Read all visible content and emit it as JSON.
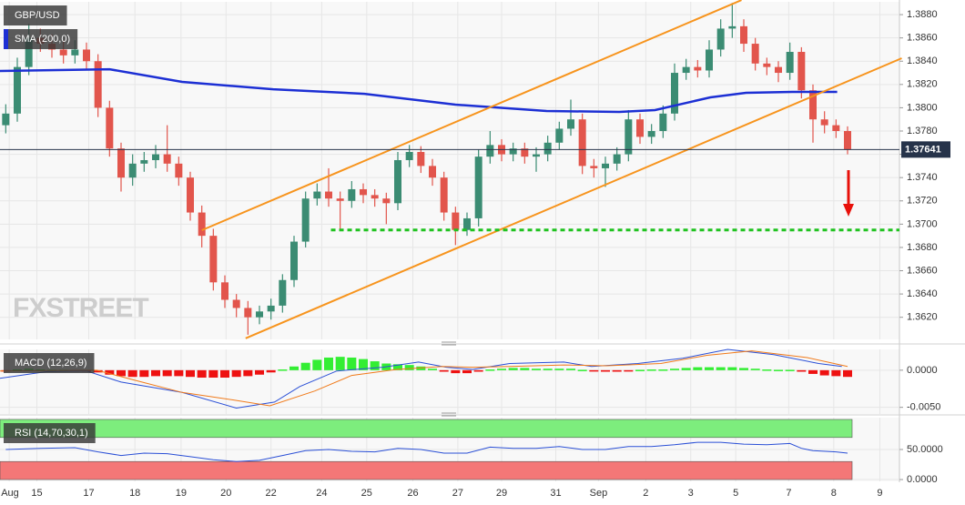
{
  "chart_data": [
    {
      "type": "candlestick",
      "title": "GBP/USD",
      "watermark": "FXSTREET",
      "up_color": "#3b8c73",
      "down_color": "#e2554c",
      "xlim": [
        -0.5,
        77.5
      ],
      "ylim": [
        1.3601,
        1.3891
      ],
      "xticks": [
        {
          "value": 0.3,
          "label": "Aug"
        },
        {
          "value": 2.7,
          "label": "15"
        },
        {
          "value": 7.2,
          "label": "17"
        },
        {
          "value": 11.2,
          "label": "18"
        },
        {
          "value": 15.2,
          "label": "19"
        },
        {
          "value": 19.1,
          "label": "20"
        },
        {
          "value": 23.0,
          "label": "22"
        },
        {
          "value": 27.4,
          "label": "24"
        },
        {
          "value": 31.3,
          "label": "25"
        },
        {
          "value": 35.3,
          "label": "26"
        },
        {
          "value": 39.2,
          "label": "27"
        },
        {
          "value": 43.0,
          "label": "29"
        },
        {
          "value": 47.7,
          "label": "31"
        },
        {
          "value": 51.4,
          "label": "Sep"
        },
        {
          "value": 55.5,
          "label": "2"
        },
        {
          "value": 59.4,
          "label": "3"
        },
        {
          "value": 63.3,
          "label": "5"
        },
        {
          "value": 67.9,
          "label": "7"
        },
        {
          "value": 71.8,
          "label": "8"
        },
        {
          "value": 75.8,
          "label": "9"
        }
      ],
      "yticks": [
        {
          "value": 1.362,
          "label": "1.3620"
        },
        {
          "value": 1.364,
          "label": "1.3640"
        },
        {
          "value": 1.366,
          "label": "1.3660"
        },
        {
          "value": 1.368,
          "label": "1.3680"
        },
        {
          "value": 1.37,
          "label": "1.3700"
        },
        {
          "value": 1.372,
          "label": "1.3720"
        },
        {
          "value": 1.374,
          "label": "1.3740"
        },
        {
          "value": 1.376,
          "label": "1.3760"
        },
        {
          "value": 1.378,
          "label": "1.3780"
        },
        {
          "value": 1.38,
          "label": "1.3800"
        },
        {
          "value": 1.382,
          "label": "1.3820"
        },
        {
          "value": 1.384,
          "label": "1.3840"
        },
        {
          "value": 1.386,
          "label": "1.3860"
        },
        {
          "value": 1.388,
          "label": "1.3880"
        }
      ],
      "grid": true,
      "x": [
        0,
        1,
        2,
        3,
        4,
        5,
        6,
        7,
        8,
        9,
        10,
        11,
        12,
        13,
        14,
        15,
        16,
        17,
        18,
        19,
        20,
        21,
        22,
        23,
        24,
        25,
        26,
        27,
        28,
        29,
        30,
        31,
        32,
        33,
        34,
        35,
        36,
        37,
        38,
        39,
        40,
        41,
        42,
        43,
        44,
        45,
        46,
        47,
        48,
        49,
        50,
        51,
        52,
        53,
        54,
        55,
        56,
        57,
        58,
        59,
        60,
        61,
        62,
        63,
        64,
        65,
        66,
        67,
        68,
        69,
        70,
        71,
        72,
        73
      ],
      "open": [
        1.3785,
        1.3795,
        1.3835,
        1.386,
        1.3855,
        1.385,
        1.3845,
        1.385,
        1.384,
        1.38,
        1.3765,
        1.374,
        1.3752,
        1.3755,
        1.376,
        1.3752,
        1.374,
        1.371,
        1.369,
        1.365,
        1.3635,
        1.3628,
        1.362,
        1.3625,
        1.363,
        1.3652,
        1.3685,
        1.3722,
        1.3728,
        1.3722,
        1.372,
        1.373,
        1.3725,
        1.3722,
        1.3718,
        1.3755,
        1.3762,
        1.375,
        1.374,
        1.371,
        1.3695,
        1.3705,
        1.3758,
        1.3768,
        1.376,
        1.3765,
        1.3758,
        1.376,
        1.377,
        1.3782,
        1.379,
        1.375,
        1.3748,
        1.3752,
        1.376,
        1.379,
        1.3775,
        1.378,
        1.3795,
        1.383,
        1.3835,
        1.3832,
        1.385,
        1.3868,
        1.387,
        1.3855,
        1.3838,
        1.3835,
        1.383,
        1.3848,
        1.3815,
        1.379,
        1.3785,
        1.378
      ],
      "high": [
        1.3803,
        1.3843,
        1.3872,
        1.3868,
        1.3863,
        1.3858,
        1.3858,
        1.3856,
        1.3846,
        1.3806,
        1.377,
        1.376,
        1.3762,
        1.3768,
        1.3785,
        1.3758,
        1.3745,
        1.3716,
        1.3696,
        1.3656,
        1.364,
        1.3634,
        1.363,
        1.3636,
        1.3657,
        1.369,
        1.3728,
        1.3735,
        1.3748,
        1.3728,
        1.3737,
        1.3735,
        1.373,
        1.3727,
        1.3762,
        1.3768,
        1.3767,
        1.3756,
        1.3745,
        1.3715,
        1.371,
        1.3764,
        1.378,
        1.3773,
        1.377,
        1.377,
        1.3766,
        1.3776,
        1.3788,
        1.3807,
        1.3795,
        1.3756,
        1.3758,
        1.3766,
        1.3798,
        1.3795,
        1.3786,
        1.3802,
        1.3838,
        1.3842,
        1.3841,
        1.3858,
        1.3876,
        1.389,
        1.3876,
        1.386,
        1.3843,
        1.384,
        1.3856,
        1.3852,
        1.382,
        1.3797,
        1.379,
        1.3784
      ],
      "low": [
        1.3778,
        1.3788,
        1.3828,
        1.3848,
        1.3843,
        1.3838,
        1.3838,
        1.3832,
        1.3792,
        1.3758,
        1.3728,
        1.3733,
        1.3745,
        1.3748,
        1.3745,
        1.3733,
        1.3703,
        1.368,
        1.3643,
        1.3628,
        1.362,
        1.3605,
        1.3614,
        1.3618,
        1.3624,
        1.3646,
        1.368,
        1.3716,
        1.3715,
        1.3695,
        1.3714,
        1.3718,
        1.3715,
        1.37,
        1.3712,
        1.3749,
        1.3744,
        1.3733,
        1.3703,
        1.3682,
        1.369,
        1.3698,
        1.3752,
        1.3754,
        1.3754,
        1.3752,
        1.3745,
        1.3754,
        1.3764,
        1.3776,
        1.3743,
        1.374,
        1.3732,
        1.3746,
        1.3754,
        1.3769,
        1.3769,
        1.3774,
        1.3789,
        1.3824,
        1.3826,
        1.3826,
        1.3844,
        1.386,
        1.3848,
        1.3832,
        1.3828,
        1.3822,
        1.3824,
        1.3808,
        1.377,
        1.3778,
        1.3774,
        1.376
      ],
      "close": [
        1.3795,
        1.3835,
        1.386,
        1.3855,
        1.385,
        1.3845,
        1.385,
        1.384,
        1.38,
        1.3765,
        1.374,
        1.3752,
        1.3755,
        1.376,
        1.3752,
        1.374,
        1.371,
        1.369,
        1.365,
        1.3635,
        1.3628,
        1.362,
        1.3625,
        1.363,
        1.3652,
        1.3685,
        1.3722,
        1.3728,
        1.3722,
        1.372,
        1.373,
        1.3725,
        1.3722,
        1.3718,
        1.3755,
        1.3762,
        1.375,
        1.374,
        1.371,
        1.3695,
        1.3705,
        1.3758,
        1.3768,
        1.376,
        1.3765,
        1.3758,
        1.376,
        1.377,
        1.3782,
        1.379,
        1.375,
        1.3748,
        1.3752,
        1.376,
        1.379,
        1.3775,
        1.378,
        1.3795,
        1.383,
        1.3835,
        1.3832,
        1.385,
        1.3868,
        1.387,
        1.3855,
        1.3838,
        1.3835,
        1.383,
        1.3848,
        1.3815,
        1.379,
        1.3785,
        1.378,
        1.3764
      ],
      "series": [
        {
          "name": "SMA (200,0)",
          "color": "#1c2fd4",
          "x": [
            -0.5,
            9.0,
            15.3,
            23.2,
            31.1,
            39.0,
            46.9,
            53.2,
            56.3,
            61.1,
            64.2,
            68.2,
            72.1
          ],
          "values": [
            1.38316,
            1.38331,
            1.38222,
            1.38159,
            1.3812,
            1.38027,
            1.37972,
            1.37964,
            1.3798,
            1.38089,
            1.38128,
            1.38136,
            1.38136
          ]
        }
      ],
      "trend_lines": [
        {
          "color": "#f7941d",
          "x": [
            17.0,
            63.8
          ],
          "values": [
            1.36948,
            1.38925
          ]
        },
        {
          "color": "#f7941d",
          "x": [
            20.8,
            77.7
          ],
          "values": [
            1.36019,
            1.38425
          ]
        }
      ],
      "levels": [
        {
          "value": 1.3695,
          "x_start": 28.2,
          "color": "#1fc21f"
        }
      ],
      "last_price": 1.37641,
      "last_price_color": "#26334a"
    },
    {
      "type": "macd",
      "title": "MACD (12,26,9)",
      "ylim": [
        -0.0059,
        0.0028
      ],
      "yticks": [
        {
          "value": 0,
          "label": "0.0000"
        },
        {
          "value": -0.005,
          "label": "-0.0050"
        }
      ],
      "histogram": {
        "up_color": "#33ee33",
        "down_color": "#ee1111",
        "values": [
          -0.0001,
          0.0001,
          0.0002,
          0.0001,
          5e-05,
          5e-05,
          -5e-05,
          -0.0001,
          -0.0003,
          -0.0006,
          -0.0008,
          -0.0009,
          -0.0009,
          -0.0008,
          -0.0008,
          -0.0008,
          -0.0009,
          -0.001,
          -0.001,
          -0.001,
          -0.0009,
          -0.0008,
          -0.0006,
          -0.0003,
          0.0001,
          0.0005,
          0.001,
          0.0014,
          0.0017,
          0.0018,
          0.0017,
          0.0015,
          0.0012,
          0.0009,
          0.0008,
          0.0007,
          0.0005,
          0.0002,
          -0.0002,
          -0.0004,
          -0.0004,
          -0.0002,
          0.0001,
          0.0002,
          0.0003,
          0.0003,
          0.0002,
          0.0002,
          0.0002,
          0.0002,
          5e-05,
          -0.0001,
          -0.0002,
          -0.0002,
          -0.0001,
          5e-05,
          0.0001,
          0.0001,
          0.0002,
          0.0003,
          0.0004,
          0.0004,
          0.0004,
          0.0004,
          0.0003,
          0.0002,
          0.0001,
          5e-05,
          5e-05,
          -0.0002,
          -0.0005,
          -0.0007,
          -0.0008,
          -0.0009
        ]
      },
      "series": [
        {
          "color": "#2a4fd6",
          "x": [
            -0.5,
            3.5,
            7.0,
            10.0,
            15.3,
            20.0,
            23.3,
            25.5,
            28.7,
            32.7,
            35.8,
            38.2,
            40.5,
            43.7,
            48.4,
            50.8,
            54.8,
            58.7,
            62.6,
            66.6,
            70.5,
            72.5
          ],
          "values": [
            -0.0011,
            -0.0002,
            -0.0001,
            -0.0016,
            -0.003,
            -0.0051,
            -0.0043,
            -0.0022,
            -0.0001,
            0.0004,
            0.0011,
            0.0004,
            0.0001,
            0.0009,
            0.0011,
            0.0005,
            0.0009,
            0.0016,
            0.0028,
            0.0021,
            0.0009,
            0.0005
          ]
        },
        {
          "color": "#f07a1a",
          "x": [
            -0.5,
            7.9,
            11.8,
            15.3,
            19.7,
            22.9,
            26.8,
            30.0,
            33.9,
            37.9,
            40.5,
            43.7,
            48.4,
            52.1,
            56.8,
            60.8,
            64.7,
            69.5,
            73.0
          ],
          "values": [
            -0.0001,
            0,
            -0.0016,
            -0.003,
            -0.004,
            -0.0048,
            -0.0028,
            -0.0007,
            0.0001,
            0.0005,
            0.0004,
            0.0005,
            0.0007,
            0.0006,
            0.0009,
            0.002,
            0.0026,
            0.0017,
            0.0005
          ]
        }
      ]
    },
    {
      "type": "rsi",
      "title": "RSI (14,70,30,1)",
      "ylim": [
        -3,
        103
      ],
      "yticks": [
        {
          "value": 50,
          "label": "50.0000"
        },
        {
          "value": 0,
          "label": "0.0000"
        }
      ],
      "bands": [
        {
          "range": [
            70,
            100
          ],
          "color": "#7ded7d"
        },
        {
          "range": [
            0,
            30
          ],
          "color": "#f47777"
        }
      ],
      "series": [
        {
          "color": "#2a4fd6",
          "x": [
            0,
            3,
            6,
            8,
            10,
            12,
            14,
            16,
            18,
            20,
            22,
            24,
            26,
            28,
            30,
            32,
            34,
            36,
            38,
            40,
            42,
            44,
            46,
            48,
            50,
            52,
            54,
            56,
            58,
            60,
            62,
            64,
            66,
            68,
            69,
            70,
            72,
            73
          ],
          "values": [
            50,
            52,
            53,
            46,
            40,
            44,
            43,
            38,
            33,
            30,
            32,
            40,
            48,
            50,
            47,
            46,
            52,
            50,
            44,
            44,
            54,
            52,
            52,
            55,
            50,
            50,
            55,
            55,
            58,
            62,
            62,
            59,
            58,
            60,
            52,
            48,
            46,
            44
          ]
        }
      ]
    }
  ]
}
